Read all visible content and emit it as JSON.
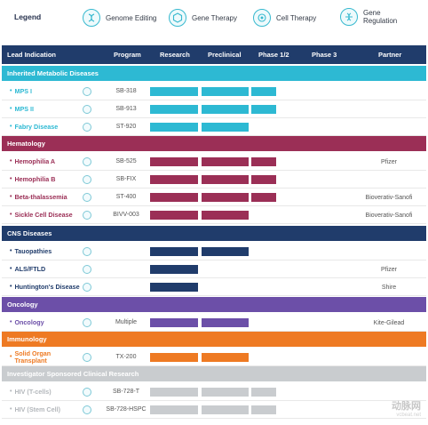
{
  "legend": {
    "title": "Legend",
    "items": [
      {
        "label": "Genome Editing",
        "icon": "genome-editing-icon"
      },
      {
        "label": "Gene Therapy",
        "icon": "gene-therapy-icon"
      },
      {
        "label": "Cell Therapy",
        "icon": "cell-therapy-icon"
      },
      {
        "label": "Gene Regulation",
        "icon": "gene-regulation-icon"
      }
    ]
  },
  "header": {
    "lead_indication": "Lead Indication",
    "program": "Program",
    "research": "Research",
    "preclinical": "Preclinical",
    "phase12": "Phase 1/2",
    "phase3": "Phase 3",
    "partner": "Partner"
  },
  "sections": [
    {
      "title": "Inherited Metabolic Diseases",
      "color": "#2db9d3",
      "rows": [
        {
          "lead": "MPS I",
          "program": "SB-318",
          "stages": 3,
          "partner": ""
        },
        {
          "lead": "MPS II",
          "program": "SB-913",
          "stages": 3,
          "partner": ""
        },
        {
          "lead": "Fabry Disease",
          "program": "ST-920",
          "stages": 2,
          "partner": ""
        }
      ]
    },
    {
      "title": "Hematology",
      "color": "#9b2f56",
      "rows": [
        {
          "lead": "Hemophilia A",
          "program": "SB-525",
          "stages": 3,
          "partner": "Pfizer"
        },
        {
          "lead": "Hemophilia B",
          "program": "SB-FIX",
          "stages": 3,
          "partner": ""
        },
        {
          "lead": "Beta-thalassemia",
          "program": "ST-400",
          "stages": 3,
          "partner": "Bioverativ-Sanofi"
        },
        {
          "lead": "Sickle Cell Disease",
          "program": "BIVV-003",
          "stages": 2,
          "partner": "Bioverativ-Sanofi"
        }
      ]
    },
    {
      "title": "CNS Diseases",
      "color": "#203c6b",
      "rows": [
        {
          "lead": "Tauopathies",
          "program": "",
          "stages": 2,
          "partner": ""
        },
        {
          "lead": "ALS/FTLD",
          "program": "",
          "stages": 1,
          "partner": "Pfizer"
        },
        {
          "lead": "Huntington's Disease",
          "program": "",
          "stages": 1,
          "partner": "Shire"
        }
      ]
    },
    {
      "title": "Oncology",
      "color": "#6c4fa8",
      "rows": [
        {
          "lead": "Oncology",
          "program": "Multiple",
          "stages": 2,
          "partner": "Kite-Gilead"
        }
      ]
    },
    {
      "title": "Immunology",
      "color": "#ee7a23",
      "rows": [
        {
          "lead": "Solid Organ Transplant",
          "program": "TX-200",
          "stages": 2,
          "partner": ""
        }
      ]
    },
    {
      "title": "Investigator Sponsored Clinical Research",
      "color": "#c9cccf",
      "rows": [
        {
          "lead": "HIV (T-cells)",
          "program": "SB-728-T",
          "stages": 3,
          "partner": ""
        },
        {
          "lead": "HIV (Stem Cell)",
          "program": "SB-728-HSPC",
          "stages": 3,
          "partner": ""
        }
      ]
    }
  ],
  "watermark": {
    "text": "动脉网",
    "sub": "vcbeat.net"
  }
}
